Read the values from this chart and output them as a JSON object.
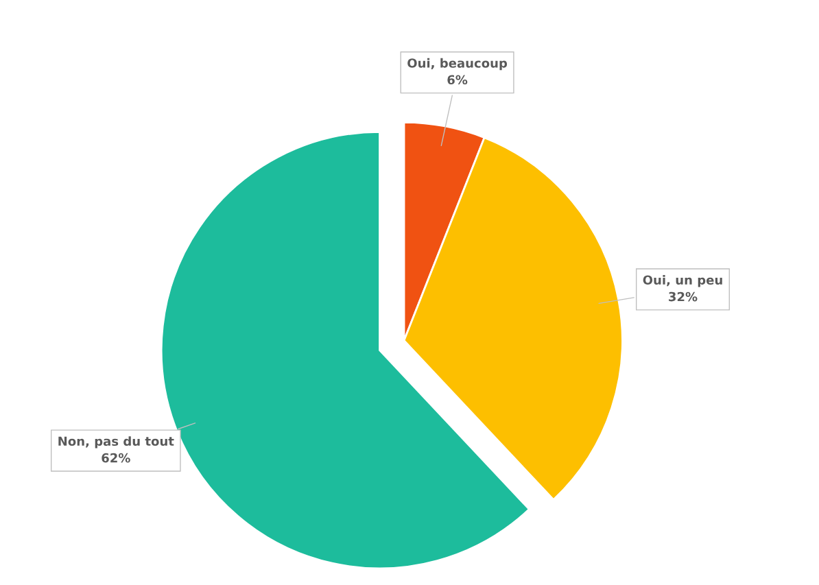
{
  "chart_data": {
    "type": "pie",
    "categories": [
      "Oui, beaucoup",
      "Oui, un peu",
      "Non, pas du tout"
    ],
    "values": [
      6,
      32,
      62
    ],
    "colors": [
      "#f05212",
      "#fdbf00",
      "#1dbc9c"
    ],
    "value_labels": [
      "6%",
      "32%",
      "62%"
    ],
    "legend": false
  }
}
